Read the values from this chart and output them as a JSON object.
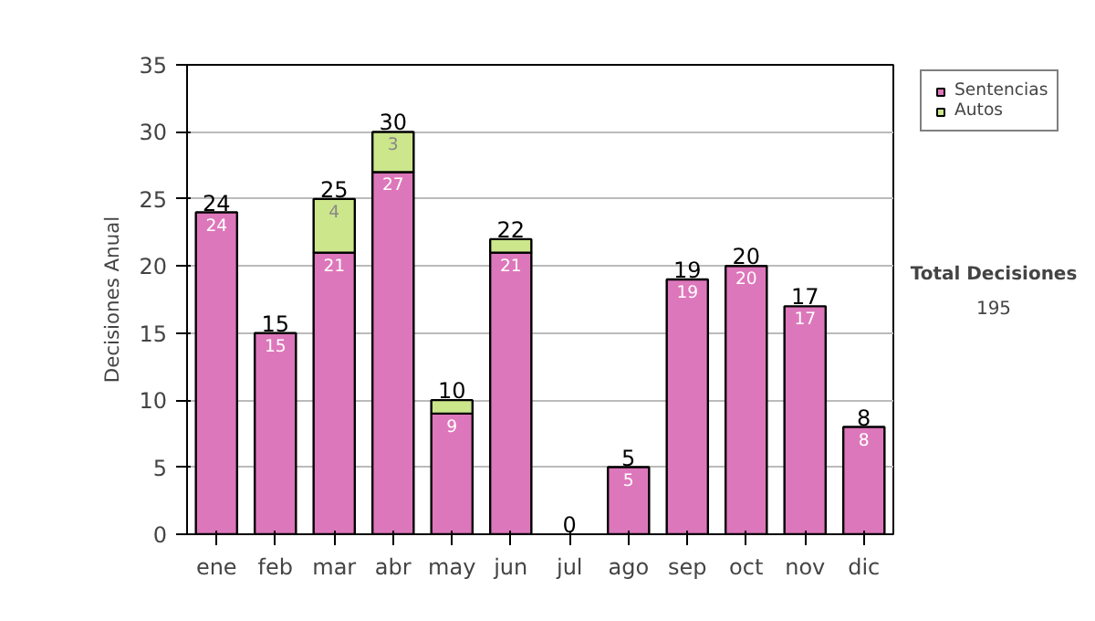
{
  "chart_data": {
    "type": "bar",
    "stacked": true,
    "ylabel": "Decisiones Anual",
    "categories": [
      "ene",
      "feb",
      "mar",
      "abr",
      "may",
      "jun",
      "jul",
      "ago",
      "sep",
      "oct",
      "nov",
      "dic"
    ],
    "series": [
      {
        "name": "Sentencias",
        "color": "#dd77bb",
        "values": [
          24,
          15,
          21,
          27,
          9,
          21,
          0,
          5,
          19,
          20,
          17,
          8
        ],
        "value_labels": [
          "24",
          "15",
          "21",
          "27",
          "9",
          "21",
          null,
          "5",
          "19",
          "20",
          "17",
          "8"
        ]
      },
      {
        "name": "Autos",
        "color": "#cce68c",
        "values": [
          0,
          0,
          4,
          3,
          1,
          1,
          0,
          0,
          0,
          0,
          0,
          0
        ],
        "value_labels": [
          null,
          null,
          "4",
          "3",
          null,
          null,
          null,
          null,
          null,
          null,
          null,
          null
        ]
      }
    ],
    "totals": [
      "24",
      "15",
      "25",
      "30",
      "10",
      "22",
      "0",
      "5",
      "19",
      "20",
      "17",
      "8"
    ],
    "ylim": [
      0,
      35
    ],
    "yticks": [
      0,
      5,
      10,
      15,
      20,
      25,
      30,
      35
    ],
    "grid": "y",
    "legend": "right",
    "annotations": [
      "Total Decisiones",
      "195"
    ]
  }
}
